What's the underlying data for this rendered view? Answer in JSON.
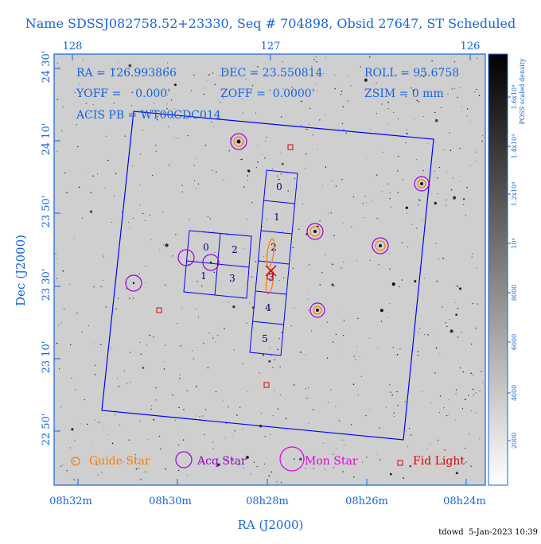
{
  "title": "Name SDSSJ082758.52+23330, Seq # 704898, Obsid 27647, ST Scheduled",
  "info": {
    "ra": "RA = 126.993866",
    "dec": "DEC = 23.550814",
    "roll": "ROLL = 95.6758",
    "yoff": "YOFF =    0.000'",
    "zoff": "ZOFF =  0.0000'",
    "zsim": "ZSIM = 0 mm",
    "acis": "ACIS PB = WT00CDC014"
  },
  "top_ticks": [
    "128",
    "127",
    "126"
  ],
  "bottom_ticks": [
    "08h32m",
    "08h30m",
    "08h28m",
    "08h26m",
    "08h24m"
  ],
  "left_ticks": [
    "24 30'",
    "24 10'",
    "23 50'",
    "23 30'",
    "23 10'",
    "22 50'"
  ],
  "x_axis_label": "RA (J2000)",
  "y_axis_label": "Dec (J2000)",
  "colorbar": {
    "label": "POSS scaled density",
    "ticks": [
      "2000",
      "4000",
      "6000",
      "8000",
      "10⁴",
      "1.2x10⁴",
      "1.4x10⁴",
      "1.6x10⁴"
    ]
  },
  "ccd_labels": [
    "0",
    "1",
    "2",
    "3",
    "4",
    "5",
    "0",
    "2",
    "1",
    "3"
  ],
  "legend": {
    "guide": "Guide Star",
    "acq": "Acq Star",
    "mon": "Mon Star",
    "fid": "Fid Light"
  },
  "footer": "tdowd  5-Jan-2023 10:39",
  "colors": {
    "text": "#1565e0",
    "frame": "#0000ff",
    "acq": "#9a00d6",
    "guide": "#ff7a00",
    "mon": "#e000e0",
    "fid": "#e00000"
  }
}
